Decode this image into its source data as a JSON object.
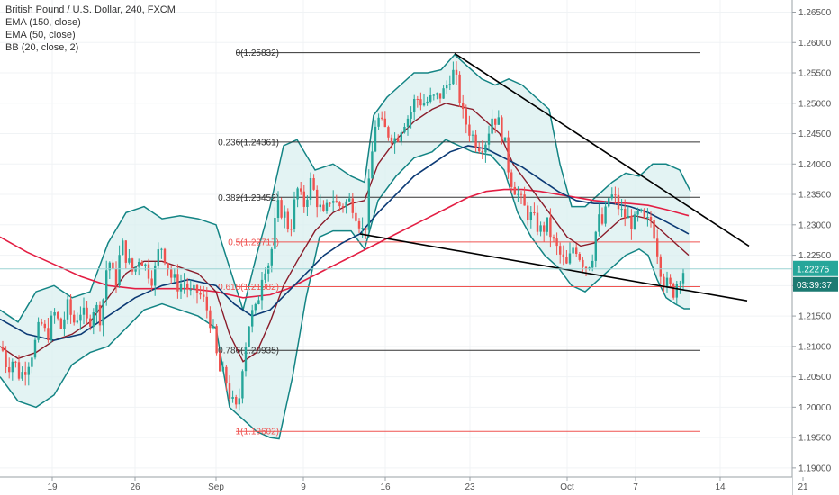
{
  "legend": {
    "title": "British Pound / U.S. Dollar, 240, FXCM",
    "indicators": [
      "EMA (150, close)",
      "EMA (50, close)",
      "BB (20, close, 2)"
    ]
  },
  "price_badge": {
    "value": "1.22275",
    "timer": "03:39:37"
  },
  "colors": {
    "up": "#26a69a",
    "down": "#ef5350",
    "bb": "#138484",
    "bb_fill": "#d9efef",
    "ema150": "#e31e43",
    "ema50": "#0c3a75",
    "mid": "#8a1c2a",
    "fib_black": "#333333",
    "fib_red": "#ef5350",
    "trendline": "#000000",
    "price_line": "#9bd3d3",
    "badge": "#26a69a",
    "badge_dark": "#1c7a72"
  },
  "chart_data": {
    "type": "candlestick",
    "symbol": "British Pound / U.S. Dollar, 240, FXCM",
    "y_ticks": [
      "1.26500",
      "1.26000",
      "1.25500",
      "1.25000",
      "1.24500",
      "1.24000",
      "1.23500",
      "1.23000",
      "1.22500",
      "1.22000",
      "1.21500",
      "1.21000",
      "1.20500",
      "1.20000",
      "1.19500",
      "1.19000"
    ],
    "x_ticks": [
      "19",
      "26",
      "Sep",
      "9",
      "16",
      "23",
      "Oct",
      "7",
      "14",
      "21"
    ],
    "ylim": [
      1.1885,
      1.267
    ],
    "fib_levels": [
      {
        "label": "0(1.25832)",
        "value": 1.25832,
        "color": "black"
      },
      {
        "label": "0.236(1.24361)",
        "value": 1.24361,
        "color": "black"
      },
      {
        "label": "0.382(1.23452)",
        "value": 1.23452,
        "color": "black"
      },
      {
        "label": "0.5(1.22717)",
        "value": 1.22717,
        "color": "red"
      },
      {
        "label": "0.618(1.21982)",
        "value": 1.21982,
        "color": "red"
      },
      {
        "label": "0.786(1.20935)",
        "value": 1.20935,
        "color": "black"
      },
      {
        "label": "1(1.19602)",
        "value": 1.19602,
        "color": "red"
      }
    ],
    "last_price": 1.22275,
    "price_path": [
      [
        0,
        1.211
      ],
      [
        8,
        1.2065
      ],
      [
        15,
        1.208
      ],
      [
        22,
        1.205
      ],
      [
        30,
        1.207
      ],
      [
        38,
        1.21
      ],
      [
        45,
        1.214
      ],
      [
        52,
        1.2115
      ],
      [
        60,
        1.2155
      ],
      [
        68,
        1.213
      ],
      [
        75,
        1.2165
      ],
      [
        82,
        1.214
      ],
      [
        90,
        1.216
      ],
      [
        98,
        1.2135
      ],
      [
        105,
        1.217
      ],
      [
        112,
        1.2145
      ],
      [
        120,
        1.225
      ],
      [
        128,
        1.22
      ],
      [
        135,
        1.227
      ],
      [
        142,
        1.224
      ],
      [
        148,
        1.222
      ],
      [
        155,
        1.225
      ],
      [
        162,
        1.223
      ],
      [
        170,
        1.221
      ],
      [
        178,
        1.227
      ],
      [
        184,
        1.2245
      ],
      [
        190,
        1.2215
      ],
      [
        198,
        1.22
      ],
      [
        205,
        1.2205
      ],
      [
        212,
        1.2185
      ],
      [
        220,
        1.219
      ],
      [
        228,
        1.217
      ],
      [
        236,
        1.213
      ],
      [
        243,
        1.206
      ],
      [
        250,
        1.205
      ],
      [
        257,
        1.201
      ],
      [
        264,
        1.199
      ],
      [
        270,
        1.208
      ],
      [
        278,
        1.215
      ],
      [
        285,
        1.216
      ],
      [
        292,
        1.223
      ],
      [
        300,
        1.224
      ],
      [
        308,
        1.233
      ],
      [
        315,
        1.232
      ],
      [
        322,
        1.229
      ],
      [
        330,
        1.236
      ],
      [
        337,
        1.233
      ],
      [
        345,
        1.237
      ],
      [
        352,
        1.234
      ],
      [
        360,
        1.231
      ],
      [
        368,
        1.235
      ],
      [
        375,
        1.233
      ],
      [
        382,
        1.2335
      ],
      [
        390,
        1.234
      ],
      [
        398,
        1.231
      ],
      [
        405,
        1.228
      ],
      [
        412,
        1.24
      ],
      [
        418,
        1.248
      ],
      [
        425,
        1.246
      ],
      [
        432,
        1.245
      ],
      [
        440,
        1.244
      ],
      [
        448,
        1.247
      ],
      [
        455,
        1.248
      ],
      [
        462,
        1.251
      ],
      [
        470,
        1.25
      ],
      [
        478,
        1.2505
      ],
      [
        486,
        1.251
      ],
      [
        494,
        1.252
      ],
      [
        502,
        1.2555
      ],
      [
        508,
        1.253
      ],
      [
        514,
        1.248
      ],
      [
        520,
        1.246
      ],
      [
        527,
        1.244
      ],
      [
        534,
        1.243
      ],
      [
        540,
        1.244
      ],
      [
        547,
        1.248
      ],
      [
        553,
        1.247
      ],
      [
        560,
        1.244
      ],
      [
        566,
        1.238
      ],
      [
        572,
        1.236
      ],
      [
        578,
        1.234
      ],
      [
        585,
        1.232
      ],
      [
        592,
        1.231
      ],
      [
        600,
        1.229
      ],
      [
        608,
        1.23
      ],
      [
        615,
        1.227
      ],
      [
        622,
        1.225
      ],
      [
        630,
        1.223
      ],
      [
        638,
        1.227
      ],
      [
        645,
        1.2245
      ],
      [
        652,
        1.223
      ],
      [
        658,
        1.225
      ],
      [
        664,
        1.231
      ],
      [
        670,
        1.23
      ],
      [
        677,
        1.235
      ],
      [
        684,
        1.234
      ],
      [
        690,
        1.232
      ],
      [
        697,
        1.231
      ],
      [
        704,
        1.23
      ],
      [
        710,
        1.232
      ],
      [
        717,
        1.23
      ],
      [
        724,
        1.231
      ],
      [
        730,
        1.226
      ],
      [
        736,
        1.221
      ],
      [
        742,
        1.22
      ],
      [
        748,
        1.219
      ],
      [
        754,
        1.2215
      ],
      [
        760,
        1.2227
      ]
    ],
    "bb_upper": [
      [
        0,
        1.216
      ],
      [
        20,
        1.214
      ],
      [
        40,
        1.219
      ],
      [
        60,
        1.22
      ],
      [
        80,
        1.218
      ],
      [
        100,
        1.219
      ],
      [
        120,
        1.227
      ],
      [
        140,
        1.232
      ],
      [
        160,
        1.233
      ],
      [
        180,
        1.231
      ],
      [
        200,
        1.2315
      ],
      [
        220,
        1.231
      ],
      [
        240,
        1.23
      ],
      [
        255,
        1.223
      ],
      [
        270,
        1.216
      ],
      [
        285,
        1.225
      ],
      [
        300,
        1.233
      ],
      [
        315,
        1.243
      ],
      [
        330,
        1.244
      ],
      [
        350,
        1.239
      ],
      [
        370,
        1.24
      ],
      [
        390,
        1.238
      ],
      [
        405,
        1.237
      ],
      [
        415,
        1.248
      ],
      [
        430,
        1.251
      ],
      [
        445,
        1.253
      ],
      [
        460,
        1.255
      ],
      [
        475,
        1.255
      ],
      [
        490,
        1.2555
      ],
      [
        505,
        1.258
      ],
      [
        520,
        1.256
      ],
      [
        535,
        1.254
      ],
      [
        550,
        1.253
      ],
      [
        565,
        1.254
      ],
      [
        580,
        1.253
      ],
      [
        595,
        1.251
      ],
      [
        610,
        1.249
      ],
      [
        622,
        1.24
      ],
      [
        635,
        1.233
      ],
      [
        650,
        1.233
      ],
      [
        665,
        1.235
      ],
      [
        680,
        1.237
      ],
      [
        695,
        1.2385
      ],
      [
        710,
        1.238
      ],
      [
        725,
        1.24
      ],
      [
        740,
        1.24
      ],
      [
        755,
        1.239
      ],
      [
        767,
        1.2355
      ]
    ],
    "bb_lower": [
      [
        0,
        1.205
      ],
      [
        20,
        1.201
      ],
      [
        40,
        1.2
      ],
      [
        60,
        1.202
      ],
      [
        80,
        1.207
      ],
      [
        100,
        1.209
      ],
      [
        120,
        1.21
      ],
      [
        140,
        1.213
      ],
      [
        160,
        1.216
      ],
      [
        180,
        1.217
      ],
      [
        200,
        1.216
      ],
      [
        220,
        1.215
      ],
      [
        240,
        1.213
      ],
      [
        255,
        1.2
      ],
      [
        270,
        1.198
      ],
      [
        285,
        1.196
      ],
      [
        300,
        1.195
      ],
      [
        310,
        1.1948
      ],
      [
        325,
        1.205
      ],
      [
        340,
        1.218
      ],
      [
        355,
        1.228
      ],
      [
        370,
        1.229
      ],
      [
        390,
        1.229
      ],
      [
        405,
        1.226
      ],
      [
        420,
        1.234
      ],
      [
        440,
        1.238
      ],
      [
        460,
        1.241
      ],
      [
        480,
        1.242
      ],
      [
        495,
        1.244
      ],
      [
        510,
        1.243
      ],
      [
        525,
        1.242
      ],
      [
        545,
        1.2415
      ],
      [
        560,
        1.239
      ],
      [
        575,
        1.232
      ],
      [
        590,
        1.228
      ],
      [
        605,
        1.225
      ],
      [
        620,
        1.223
      ],
      [
        635,
        1.22
      ],
      [
        650,
        1.219
      ],
      [
        665,
        1.221
      ],
      [
        680,
        1.223
      ],
      [
        695,
        1.225
      ],
      [
        710,
        1.226
      ],
      [
        720,
        1.225
      ],
      [
        730,
        1.221
      ],
      [
        740,
        1.218
      ],
      [
        750,
        1.217
      ],
      [
        760,
        1.2162
      ],
      [
        767,
        1.2162
      ]
    ],
    "bb_middle": [
      [
        0,
        1.21
      ],
      [
        20,
        1.208
      ],
      [
        40,
        1.209
      ],
      [
        60,
        1.211
      ],
      [
        80,
        1.212
      ],
      [
        100,
        1.214
      ],
      [
        120,
        1.218
      ],
      [
        140,
        1.222
      ],
      [
        160,
        1.224
      ],
      [
        180,
        1.224
      ],
      [
        200,
        1.223
      ],
      [
        220,
        1.222
      ],
      [
        240,
        1.219
      ],
      [
        255,
        1.212
      ],
      [
        270,
        1.2075
      ],
      [
        285,
        1.209
      ],
      [
        300,
        1.214
      ],
      [
        315,
        1.22
      ],
      [
        330,
        1.224
      ],
      [
        350,
        1.229
      ],
      [
        370,
        1.232
      ],
      [
        390,
        1.2335
      ],
      [
        405,
        1.234
      ],
      [
        420,
        1.24
      ],
      [
        440,
        1.244
      ],
      [
        460,
        1.247
      ],
      [
        480,
        1.249
      ],
      [
        495,
        1.25
      ],
      [
        510,
        1.2495
      ],
      [
        525,
        1.249
      ],
      [
        540,
        1.247
      ],
      [
        555,
        1.245
      ],
      [
        570,
        1.24
      ],
      [
        585,
        1.237
      ],
      [
        600,
        1.234
      ],
      [
        615,
        1.231
      ],
      [
        630,
        1.228
      ],
      [
        645,
        1.2265
      ],
      [
        660,
        1.227
      ],
      [
        675,
        1.229
      ],
      [
        690,
        1.231
      ],
      [
        705,
        1.2315
      ],
      [
        720,
        1.231
      ],
      [
        735,
        1.229
      ],
      [
        750,
        1.227
      ],
      [
        765,
        1.225
      ]
    ],
    "ema50": [
      [
        0,
        1.2145
      ],
      [
        30,
        1.212
      ],
      [
        60,
        1.211
      ],
      [
        90,
        1.212
      ],
      [
        120,
        1.215
      ],
      [
        150,
        1.218
      ],
      [
        180,
        1.22
      ],
      [
        210,
        1.221
      ],
      [
        240,
        1.22
      ],
      [
        260,
        1.217
      ],
      [
        280,
        1.215
      ],
      [
        300,
        1.216
      ],
      [
        320,
        1.219
      ],
      [
        340,
        1.222
      ],
      [
        360,
        1.225
      ],
      [
        380,
        1.227
      ],
      [
        400,
        1.2285
      ],
      [
        420,
        1.232
      ],
      [
        440,
        1.235
      ],
      [
        460,
        1.238
      ],
      [
        480,
        1.24
      ],
      [
        500,
        1.242
      ],
      [
        520,
        1.243
      ],
      [
        540,
        1.2425
      ],
      [
        560,
        1.241
      ],
      [
        580,
        1.2395
      ],
      [
        600,
        1.2375
      ],
      [
        620,
        1.2355
      ],
      [
        640,
        1.234
      ],
      [
        660,
        1.2335
      ],
      [
        680,
        1.2335
      ],
      [
        700,
        1.233
      ],
      [
        720,
        1.232
      ],
      [
        740,
        1.2305
      ],
      [
        765,
        1.2285
      ]
    ],
    "ema150": [
      [
        0,
        1.228
      ],
      [
        30,
        1.2255
      ],
      [
        60,
        1.2235
      ],
      [
        90,
        1.2215
      ],
      [
        120,
        1.22
      ],
      [
        150,
        1.2195
      ],
      [
        180,
        1.2195
      ],
      [
        210,
        1.2195
      ],
      [
        240,
        1.219
      ],
      [
        270,
        1.218
      ],
      [
        300,
        1.2185
      ],
      [
        320,
        1.2195
      ],
      [
        340,
        1.221
      ],
      [
        360,
        1.2225
      ],
      [
        380,
        1.224
      ],
      [
        400,
        1.2255
      ],
      [
        420,
        1.227
      ],
      [
        440,
        1.2285
      ],
      [
        460,
        1.23
      ],
      [
        480,
        1.2315
      ],
      [
        500,
        1.233
      ],
      [
        520,
        1.2345
      ],
      [
        540,
        1.2355
      ],
      [
        560,
        1.2358
      ],
      [
        580,
        1.2358
      ],
      [
        600,
        1.2355
      ],
      [
        620,
        1.235
      ],
      [
        640,
        1.2345
      ],
      [
        660,
        1.234
      ],
      [
        680,
        1.2337
      ],
      [
        700,
        1.2335
      ],
      [
        720,
        1.2332
      ],
      [
        740,
        1.2325
      ],
      [
        765,
        1.2315
      ]
    ],
    "trendlines": [
      {
        "from": [
          505,
          1.2582
        ],
        "to": [
          832,
          1.2265
        ]
      },
      {
        "from": [
          400,
          1.2285
        ],
        "to": [
          830,
          1.2175
        ]
      }
    ]
  }
}
